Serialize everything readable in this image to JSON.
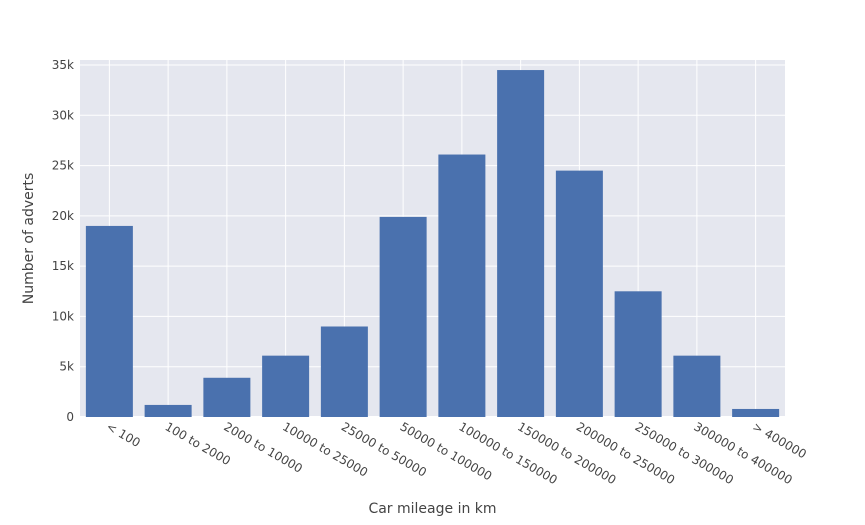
{
  "chart_data": {
    "type": "bar",
    "title": "",
    "xlabel": "Car mileage in km",
    "ylabel": "Number of adverts",
    "categories": [
      "< 100",
      "100 to 2000",
      "2000 to 10000",
      "10000 to 25000",
      "25000 to 50000",
      "50000 to 100000",
      "100000 to 150000",
      "150000 to 200000",
      "200000 to 250000",
      "250000 to 300000",
      "300000 to 400000",
      "> 400000"
    ],
    "values": [
      19000,
      1200,
      3900,
      6100,
      9000,
      19900,
      26100,
      34500,
      24500,
      12500,
      6100,
      800
    ],
    "ylim": [
      0,
      35500
    ],
    "yticks": [
      0,
      5000,
      10000,
      15000,
      20000,
      25000,
      30000,
      35000
    ],
    "ytick_labels": [
      "0",
      "5k",
      "10k",
      "15k",
      "20k",
      "25k",
      "30k",
      "35k"
    ],
    "grid": true,
    "colors": {
      "bar": "#4a71ae",
      "plot_background": "#e5e7ef",
      "grid": "#ffffff",
      "text": "#444444"
    }
  }
}
